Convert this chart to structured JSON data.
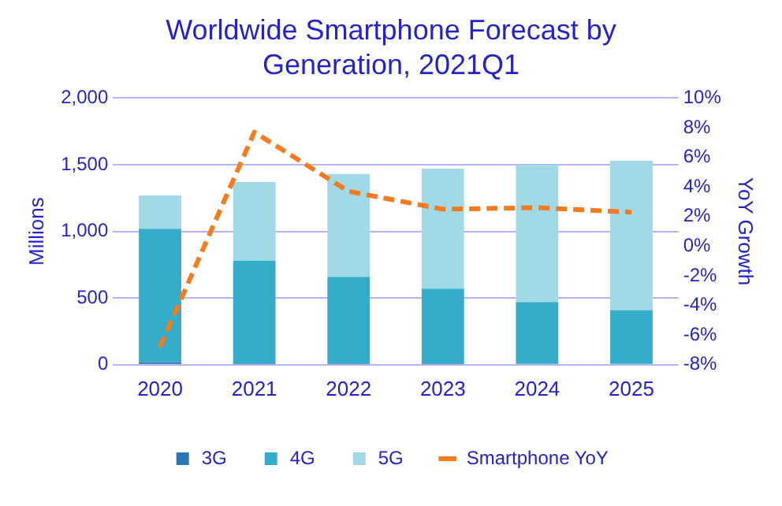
{
  "chart_data": {
    "type": "bar",
    "title": "Worldwide Smartphone Forecast by Generation, 2021Q1",
    "ylabel": "Millions",
    "y2label": "YoY Growth",
    "categories": [
      "2020",
      "2021",
      "2022",
      "2023",
      "2024",
      "2025"
    ],
    "stacked": true,
    "series": [
      {
        "name": "3G",
        "color": "#2e75b6",
        "values": [
          20,
          10,
          10,
          10,
          0,
          0
        ]
      },
      {
        "name": "4G",
        "color": "#36adc8",
        "values": [
          1000,
          770,
          650,
          560,
          470,
          410
        ]
      },
      {
        "name": "5G",
        "color": "#a1dae6",
        "values": [
          250,
          590,
          770,
          900,
          1030,
          1120
        ]
      },
      {
        "name": "Smartphone YoY",
        "type": "line",
        "axis": "y2",
        "color": "#f47b20",
        "line_style": "dashed",
        "marker": "none",
        "values": [
          -6.8,
          7.7,
          3.7,
          2.5,
          2.6,
          2.3
        ]
      }
    ],
    "ylim": [
      0,
      2000
    ],
    "yticks": [
      0,
      500,
      {
        "value": 1000,
        "label": "1,000"
      },
      {
        "value": 1500,
        "label": "1,500"
      },
      {
        "value": 2000,
        "label": "2,000"
      }
    ],
    "y2lim": [
      -8,
      10
    ],
    "y2ticks": [
      {
        "value": -8,
        "label": "-8%"
      },
      {
        "value": -6,
        "label": "-6%"
      },
      {
        "value": -4,
        "label": "-4%"
      },
      {
        "value": -2,
        "label": "-2%"
      },
      {
        "value": 0,
        "label": "0%"
      },
      {
        "value": 2,
        "label": "2%"
      },
      {
        "value": 4,
        "label": "4%"
      },
      {
        "value": 6,
        "label": "6%"
      },
      {
        "value": 8,
        "label": "8%"
      },
      {
        "value": 10,
        "label": "10%"
      }
    ],
    "grid": "y",
    "legend": "bottom"
  }
}
